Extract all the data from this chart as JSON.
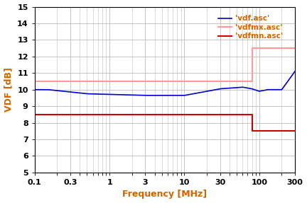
{
  "xlabel": "Frequency [MHz]",
  "ylabel": "VDF [dB]",
  "xlim": [
    0.1,
    300
  ],
  "ylim": [
    5,
    15
  ],
  "yticks": [
    5,
    6,
    7,
    8,
    9,
    10,
    11,
    12,
    13,
    14,
    15
  ],
  "xtick_labels": [
    "0.1",
    "0.3",
    "1",
    "3",
    "10",
    "30",
    "100",
    "300"
  ],
  "xtick_values": [
    0.1,
    0.3,
    1,
    3,
    10,
    30,
    100,
    300
  ],
  "legend": [
    {
      "label": "'vdf.asc'",
      "color": "#0000cc"
    },
    {
      "label": "'vdfmx.asc'",
      "color": "#ff9999"
    },
    {
      "label": "'vdfmn.asc'",
      "color": "#cc0000"
    }
  ],
  "vdf_color": "#0000cc",
  "vdfmx_color": "#ff9999",
  "vdfmn_color": "#cc0000",
  "text_color": "#cc6600",
  "background": "#ffffff",
  "grid_color": "#bbbbbb",
  "border_color": "#000000",
  "jump_freq": 80,
  "vdfmx_low": 10.5,
  "vdfmx_high": 12.5,
  "vdfmn_low": 8.5,
  "vdfmn_high": 7.5
}
